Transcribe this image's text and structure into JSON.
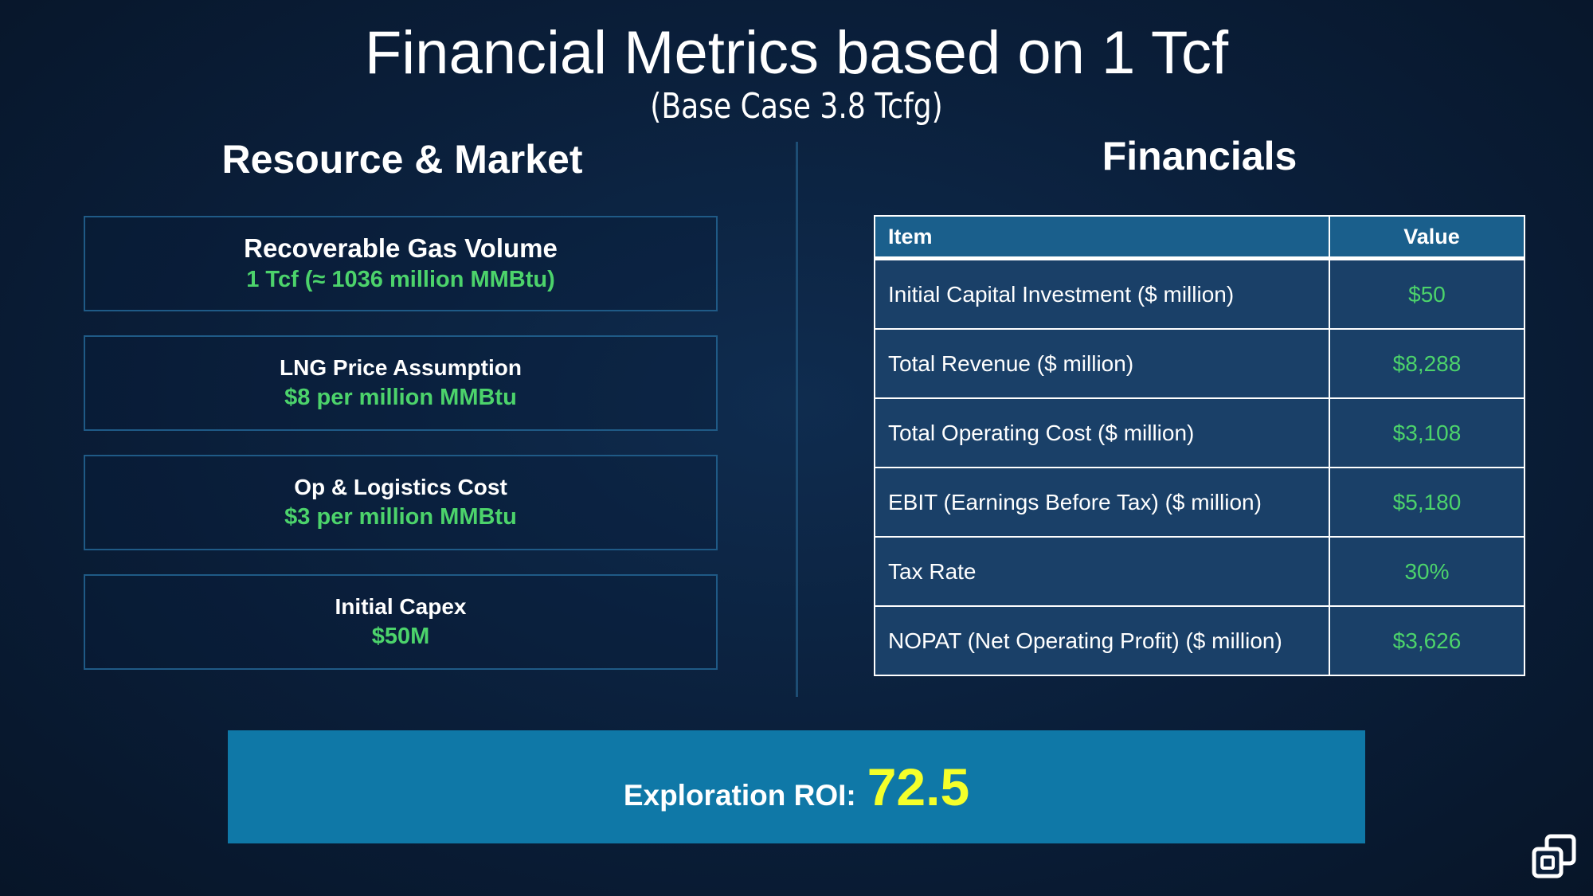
{
  "title": "Financial Metrics based on 1 Tcf",
  "subtitle": "(Base Case 3.8 Tcfg)",
  "left_section": {
    "heading": "Resource & Market",
    "cards": [
      {
        "label": "Recoverable Gas Volume",
        "value": "1 Tcf (≈ 1036 million MMBtu)"
      },
      {
        "label": "LNG Price Assumption",
        "value": "$8 per million MMBtu"
      },
      {
        "label": "Op & Logistics Cost",
        "value": "$3 per million MMBtu"
      },
      {
        "label": "Initial Capex",
        "value": "$50M"
      }
    ]
  },
  "right_section": {
    "heading": "Financials",
    "table": {
      "headers": {
        "item": "Item",
        "value": "Value"
      },
      "rows": [
        {
          "item": "Initial Capital Investment ($ million)",
          "value": "$50"
        },
        {
          "item": "Total Revenue ($ million)",
          "value": "$8,288"
        },
        {
          "item": "Total Operating Cost ($ million)",
          "value": "$3,108"
        },
        {
          "item": "EBIT (Earnings Before Tax) ($ million)",
          "value": "$5,180"
        },
        {
          "item": "Tax Rate",
          "value": "30%"
        },
        {
          "item": "NOPAT (Net Operating Profit) ($ million)",
          "value": "$3,626"
        }
      ]
    }
  },
  "roi": {
    "label": "Exploration ROI:",
    "value": "72.5"
  },
  "logo_icon": "copy-squares-icon",
  "colors": {
    "background": "#0a1e39",
    "accent_green": "#4cd36b",
    "roi_box": "#0f78a7",
    "roi_value": "#f5ff2a",
    "table_header": "#1a5f8c",
    "table_row": "#1a4068"
  }
}
